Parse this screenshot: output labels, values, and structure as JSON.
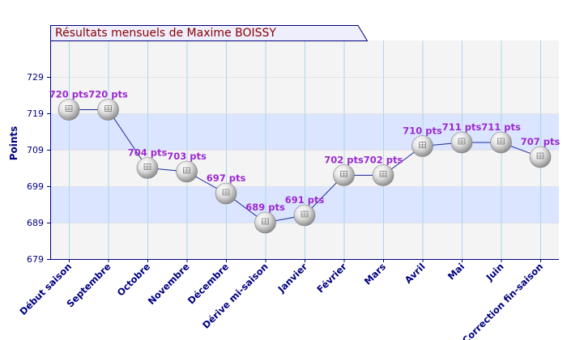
{
  "chart_data": {
    "type": "line",
    "title": "Résultats mensuels de  Maxime BOISSY",
    "ylabel": "Points",
    "xlabel": "",
    "ylim": [
      679,
      739
    ],
    "yticks": [
      679,
      689,
      699,
      709,
      719,
      729
    ],
    "grid": true,
    "categories": [
      "Début saison",
      "Septembre",
      "Octobre",
      "Novembre",
      "Décembre",
      "Dérive mi-saison",
      "Janvier",
      "Février",
      "Mars",
      "Avril",
      "Mai",
      "Juin",
      "Correction fin-saison"
    ],
    "series": [
      {
        "values": [
          720,
          720,
          704,
          703,
          697,
          689,
          691,
          702,
          702,
          710,
          711,
          711,
          707
        ],
        "labels": [
          "720 pts",
          "720 pts",
          "704 pts",
          "703 pts",
          "697 pts",
          "689 pts",
          "691 pts",
          "702 pts",
          "702 pts",
          "710 pts",
          "711 pts",
          "711 pts",
          "707 pts"
        ]
      }
    ],
    "colors": {
      "title": "#8b0000",
      "title_box": "#eeeefc",
      "band_light": "#f4f4f4",
      "band_blue": "#dbe5ff",
      "axis": "#000080",
      "gridline": "#a8d8e8",
      "line": "#1a2a9a",
      "data_label": "#9a2ad0",
      "tick_label": "#000080"
    }
  }
}
